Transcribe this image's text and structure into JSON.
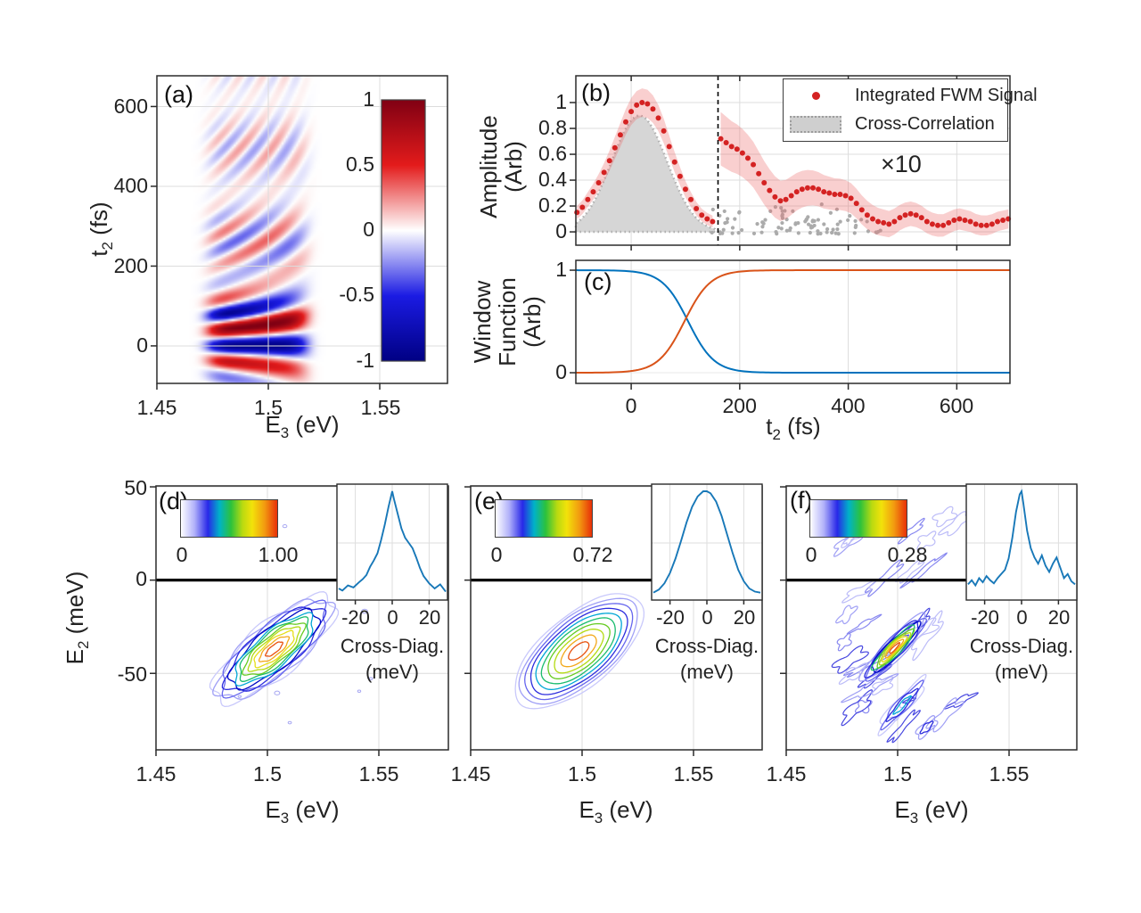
{
  "figure": {
    "bg": "#ffffff",
    "text_color": "#222222",
    "grid_color": "#dcdcdc",
    "axis_color": "#2b2b2b",
    "contour_palette": [
      "#c9c9fb",
      "#a0a0f6",
      "#6666ee",
      "#2d2dde",
      "#0008c6",
      "#00a6d6",
      "#1abc6e",
      "#66cb22",
      "#b4da12",
      "#e6de18",
      "#f2a81a",
      "#e8520f"
    ],
    "jet_gradient": [
      "#ffffff",
      "#b2b2fa",
      "#2828e8",
      "#00b2c8",
      "#2cc23c",
      "#bada10",
      "#f2e20a",
      "#f29a10",
      "#e83008"
    ]
  },
  "chart_data": {
    "a": {
      "type": "heatmap",
      "label": "(a)",
      "xlabel": {
        "pre": "E",
        "sub": "3",
        "post": " (eV)"
      },
      "ylabel": {
        "pre": "t",
        "sub": "2",
        "post": " (fs)"
      },
      "x_tick_labels": [
        "1.45",
        "1.5",
        "1.55"
      ],
      "x_ticks": [
        1.45,
        1.5,
        1.55
      ],
      "y_tick_labels": [
        "0",
        "200",
        "400",
        "600"
      ],
      "y_ticks": [
        0,
        200,
        400,
        600
      ],
      "x_range": [
        1.45,
        1.5804
      ],
      "y_range": [
        -94,
        677
      ],
      "colorbar": {
        "tick_labels": [
          "1",
          "0.5",
          "0",
          "-0.5",
          "-1"
        ],
        "ticks": [
          1,
          0.5,
          0,
          -0.5,
          -1
        ],
        "stops": [
          "#800013",
          "#e31b1b",
          "#ffffff",
          "#1b1be3",
          "#000083"
        ]
      },
      "heatmap": {
        "E_center": 1.495,
        "E_width": 0.022,
        "E_power": 6,
        "t_period": 100,
        "fan": 0.9,
        "core_center": 15,
        "core_sigma": 90,
        "tail_amp": 0.55,
        "tail_tau": 480,
        "beat_period": 230,
        "beat_phase": 40
      }
    },
    "b": {
      "type": "scatter-line",
      "label": "(b)",
      "ylabel_lines": [
        "Amplitude",
        "(Arb)"
      ],
      "y_tick_labels": [
        "0",
        "0.2",
        "0.4",
        "0.6",
        "0.8",
        "1"
      ],
      "y_ticks": [
        0,
        0.2,
        0.4,
        0.6,
        0.8,
        1
      ],
      "x_ticks": [
        0,
        200,
        400,
        600
      ],
      "x_range": [
        -102,
        698
      ],
      "y_range": [
        -0.103,
        1.207
      ],
      "annotation": "×10",
      "dashed_line_t": 160,
      "colors": {
        "fwm": "#d42222",
        "band": "rgba(238,110,110,0.33)",
        "cc_fill": "#d6d6d6",
        "cc_edge": "#b0b0b0",
        "scatter": "#ababab"
      },
      "legend": [
        {
          "label": "Integrated FWM Signal",
          "marker": "dot"
        },
        {
          "label": "Cross-Correlation",
          "marker": "patch"
        }
      ],
      "fwm": {
        "t": [
          -100,
          -90,
          -80,
          -70,
          -60,
          -50,
          -40,
          -30,
          -20,
          -10,
          0,
          10,
          20,
          30,
          40,
          50,
          60,
          70,
          80,
          90,
          100,
          110,
          120,
          130,
          140,
          150,
          165,
          175,
          185,
          195,
          205,
          215,
          225,
          235,
          245,
          255,
          265,
          275,
          285,
          295,
          305,
          315,
          325,
          335,
          345,
          355,
          365,
          375,
          385,
          395,
          405,
          415,
          425,
          435,
          445,
          455,
          465,
          475,
          485,
          495,
          505,
          515,
          525,
          535,
          545,
          555,
          565,
          575,
          585,
          595,
          605,
          615,
          625,
          635,
          645,
          655,
          665,
          675,
          685,
          695
        ],
        "v": [
          0.15,
          0.19,
          0.25,
          0.31,
          0.38,
          0.46,
          0.55,
          0.65,
          0.75,
          0.85,
          0.93,
          0.98,
          1.0,
          0.99,
          0.95,
          0.88,
          0.78,
          0.66,
          0.54,
          0.43,
          0.33,
          0.25,
          0.18,
          0.13,
          0.1,
          0.08,
          0.72,
          0.69,
          0.66,
          0.64,
          0.61,
          0.57,
          0.52,
          0.45,
          0.38,
          0.32,
          0.27,
          0.24,
          0.25,
          0.28,
          0.31,
          0.33,
          0.34,
          0.34,
          0.33,
          0.31,
          0.3,
          0.29,
          0.29,
          0.28,
          0.26,
          0.22,
          0.17,
          0.13,
          0.1,
          0.08,
          0.07,
          0.06,
          0.08,
          0.11,
          0.13,
          0.14,
          0.13,
          0.11,
          0.08,
          0.06,
          0.05,
          0.05,
          0.07,
          0.09,
          0.1,
          0.09,
          0.08,
          0.06,
          0.05,
          0.05,
          0.06,
          0.08,
          0.09,
          0.1
        ]
      },
      "cc": {
        "peak": 0.9,
        "center": 15,
        "sigma": 72,
        "t_min": -102,
        "t_max": 155
      },
      "scatter": {
        "t_min": 148,
        "t_max": 460,
        "n": 90,
        "v_max": 0.23,
        "seed": 11
      },
      "band": {
        "base_before": 0.04,
        "prop_before": 0.07,
        "base_after": 0.05,
        "amp_after": 0.16,
        "tau_after": 280
      }
    },
    "c": {
      "type": "line",
      "label": "(c)",
      "ylabel_lines": [
        "Window",
        "Function",
        "(Arb)"
      ],
      "y_tick_labels": [
        "0",
        "1"
      ],
      "y_ticks": [
        0,
        1
      ],
      "x_tick_labels": [
        "0",
        "200",
        "400",
        "600"
      ],
      "x_ticks": [
        0,
        200,
        400,
        600
      ],
      "xlabel": {
        "pre": "t",
        "sub": "2",
        "post": " (fs)"
      },
      "x_range": [
        -102,
        698
      ],
      "y_range": [
        -0.104,
        1.096
      ],
      "curves": [
        {
          "name": "early-window",
          "color": "#0072BD",
          "center": 105,
          "width": 24,
          "direction": "falling"
        },
        {
          "name": "late-window",
          "color": "#D95319",
          "center": 98,
          "width": 24,
          "direction": "rising"
        }
      ]
    },
    "d": {
      "type": "contour",
      "label": "(d)",
      "xlabel": {
        "pre": "E",
        "sub": "3",
        "post": " (eV)"
      },
      "ylabel": {
        "pre": "E",
        "sub": "2",
        "post": " (meV)"
      },
      "x_tick_labels": [
        "1.45",
        "1.5",
        "1.55"
      ],
      "x_ticks": [
        1.45,
        1.5,
        1.55
      ],
      "y_tick_labels": [
        "50",
        "0",
        "-50"
      ],
      "y_ticks": [
        50,
        0,
        -50
      ],
      "x_range": [
        1.45,
        1.5812
      ],
      "y_range": [
        -91,
        50.5
      ],
      "colorbar": {
        "labels": [
          "0",
          "1.00"
        ]
      },
      "contours": {
        "cx": 1.503,
        "cy": -37,
        "a": 86,
        "b": 30,
        "angle": -40,
        "n": 12,
        "wiggle": 0.08,
        "k": 6,
        "seed": 3,
        "palette_idx": [
          0,
          1,
          2,
          3,
          4,
          5,
          6,
          7,
          8,
          9,
          10,
          11
        ]
      },
      "specks": {
        "n": 10,
        "seed": 5
      },
      "inset": {
        "x_tick_labels": [
          "-20",
          "0",
          "20"
        ],
        "caption": "Cross-Diag.",
        "caption2": "(meV)",
        "curve": {
          "x": [
            -29,
            -27,
            -24,
            -21,
            -18,
            -16,
            -14,
            -12,
            -10,
            -8,
            -6,
            -4,
            -2,
            0,
            1,
            3,
            5,
            7,
            9,
            11,
            13,
            15,
            17,
            20,
            23,
            26,
            29
          ],
          "y": [
            0.06,
            0.04,
            0.09,
            0.07,
            0.12,
            0.15,
            0.19,
            0.27,
            0.33,
            0.4,
            0.53,
            0.68,
            0.85,
            1.0,
            0.92,
            0.78,
            0.64,
            0.55,
            0.5,
            0.45,
            0.36,
            0.26,
            0.18,
            0.11,
            0.06,
            0.1,
            0.03
          ]
        }
      }
    },
    "e": {
      "type": "contour",
      "label": "(e)",
      "xlabel": {
        "pre": "E",
        "sub": "3",
        "post": " (eV)"
      },
      "x_tick_labels": [
        "1.45",
        "1.5",
        "1.55"
      ],
      "x_ticks": [
        1.45,
        1.5,
        1.55
      ],
      "x_range": [
        1.45,
        1.5808
      ],
      "y_range": [
        -91,
        50.5
      ],
      "colorbar": {
        "labels": [
          "0",
          "0.72"
        ]
      },
      "contours": {
        "cx": 1.4985,
        "cy": -38,
        "a": 88,
        "b": 40,
        "angle": -40,
        "n": 10,
        "wiggle": 0.015,
        "k": 5,
        "seed": 4,
        "palette_idx": [
          0,
          1,
          2,
          3,
          5,
          6,
          7,
          8,
          10,
          11
        ]
      },
      "inset": {
        "x_tick_labels": [
          "-20",
          "0",
          "20"
        ],
        "caption": "Cross-Diag.",
        "caption2": "(meV)",
        "curve": {
          "x": [
            -29,
            -26,
            -23,
            -20,
            -17,
            -14,
            -11,
            -8,
            -5,
            -2,
            0,
            2,
            5,
            8,
            11,
            14,
            17,
            20,
            23,
            26,
            29
          ],
          "y": [
            0.02,
            0.05,
            0.11,
            0.21,
            0.35,
            0.52,
            0.7,
            0.85,
            0.95,
            1.0,
            1.0,
            0.98,
            0.9,
            0.76,
            0.58,
            0.4,
            0.24,
            0.13,
            0.06,
            0.03,
            0.02
          ]
        }
      }
    },
    "f": {
      "type": "contour",
      "label": "(f)",
      "xlabel": {
        "pre": "E",
        "sub": "3",
        "post": " (eV)"
      },
      "x_tick_labels": [
        "1.45",
        "1.5",
        "1.55"
      ],
      "x_ticks": [
        1.45,
        1.5,
        1.55
      ],
      "x_range": [
        1.45,
        1.5804
      ],
      "y_range": [
        -91,
        50.5
      ],
      "colorbar": {
        "labels": [
          "0",
          "0.28"
        ]
      },
      "contours": {
        "cx": 1.4985,
        "cy": -36.5,
        "a": 50,
        "b": 11,
        "angle": -46,
        "n": 10,
        "wiggle": 0.13,
        "k": 3,
        "seed": 6,
        "palette_idx": [
          1,
          2,
          3,
          4,
          6,
          7,
          8,
          9,
          10,
          11
        ]
      },
      "extra_streaks": [
        {
          "cx": 1.502,
          "cy": -67,
          "a": 40,
          "b": 8,
          "angle": -48,
          "n": 4,
          "wiggle": 0.18,
          "k": 4,
          "seed": 13,
          "palette_idx": [
            0,
            2,
            3,
            5
          ]
        },
        {
          "cx": 1.513,
          "cy": -79,
          "a": 15,
          "b": 6,
          "angle": -45,
          "n": 2,
          "wiggle": 0.2,
          "k": 4,
          "seed": 17,
          "palette_idx": [
            1,
            3
          ]
        }
      ],
      "noise": {
        "n": 30,
        "seed": 9,
        "colors": [
          "#bcbcf8",
          "#a0a0f5",
          "#8888f0",
          "#4848e0"
        ]
      },
      "inset": {
        "x_tick_labels": [
          "-20",
          "0",
          "20"
        ],
        "caption": "Cross-Diag.",
        "caption2": "(meV)",
        "curve": {
          "x": [
            -29,
            -27,
            -25,
            -23,
            -21,
            -19,
            -17,
            -15,
            -13,
            -11,
            -9,
            -7,
            -5,
            -3,
            -1,
            0,
            1,
            3,
            5,
            7,
            9,
            11,
            13,
            15,
            17,
            19,
            21,
            23,
            25,
            27,
            29
          ],
          "y": [
            0.1,
            0.14,
            0.09,
            0.16,
            0.12,
            0.18,
            0.14,
            0.11,
            0.16,
            0.2,
            0.24,
            0.35,
            0.55,
            0.8,
            0.97,
            1.0,
            0.88,
            0.62,
            0.45,
            0.36,
            0.3,
            0.38,
            0.28,
            0.22,
            0.3,
            0.36,
            0.26,
            0.16,
            0.2,
            0.13,
            0.1
          ]
        }
      }
    }
  }
}
